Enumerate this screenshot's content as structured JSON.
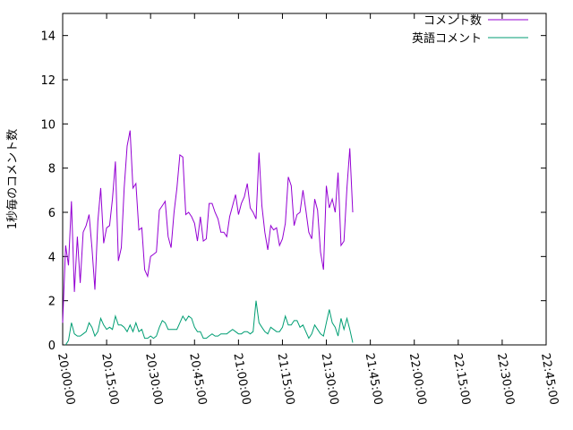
{
  "chart_data": {
    "type": "line",
    "title": "",
    "xlabel": "",
    "ylabel": "1秒毎のコメント数",
    "ylim": [
      0,
      15
    ],
    "xlim": [
      "20:00:00",
      "22:45:00"
    ],
    "x_ticks": [
      "20:00:00",
      "20:15:00",
      "20:30:00",
      "20:45:00",
      "21:00:00",
      "21:15:00",
      "21:30:00",
      "21:45:00",
      "22:00:00",
      "22:15:00",
      "22:30:00",
      "22:45:00"
    ],
    "y_ticks": [
      "0",
      "2",
      "4",
      "6",
      "8",
      "10",
      "12",
      "14"
    ],
    "grid": false,
    "legend_position": "top-right",
    "series": [
      {
        "name": "コメント数",
        "color": "#9400d3",
        "points": [
          [
            "20:00:00",
            1.0
          ],
          [
            "20:01:00",
            4.5
          ],
          [
            "20:02:00",
            3.6
          ],
          [
            "20:03:00",
            6.5
          ],
          [
            "20:04:00",
            2.4
          ],
          [
            "20:05:00",
            4.9
          ],
          [
            "20:06:00",
            2.8
          ],
          [
            "20:07:00",
            5.1
          ],
          [
            "20:08:00",
            5.4
          ],
          [
            "20:09:00",
            5.9
          ],
          [
            "20:10:00",
            4.4
          ],
          [
            "20:11:00",
            2.5
          ],
          [
            "20:12:00",
            5.6
          ],
          [
            "20:13:00",
            7.1
          ],
          [
            "20:14:00",
            4.6
          ],
          [
            "20:15:00",
            5.3
          ],
          [
            "20:16:00",
            5.4
          ],
          [
            "20:17:00",
            6.6
          ],
          [
            "20:18:00",
            8.3
          ],
          [
            "20:19:00",
            3.8
          ],
          [
            "20:20:00",
            4.4
          ],
          [
            "20:21:00",
            7.1
          ],
          [
            "20:22:00",
            9.0
          ],
          [
            "20:23:00",
            9.7
          ],
          [
            "20:24:00",
            7.1
          ],
          [
            "20:25:00",
            7.3
          ],
          [
            "20:26:00",
            5.2
          ],
          [
            "20:27:00",
            5.3
          ],
          [
            "20:28:00",
            3.4
          ],
          [
            "20:29:00",
            3.1
          ],
          [
            "20:30:00",
            4.0
          ],
          [
            "20:31:00",
            4.1
          ],
          [
            "20:32:00",
            4.2
          ],
          [
            "20:33:00",
            6.1
          ],
          [
            "20:34:00",
            6.3
          ],
          [
            "20:35:00",
            6.5
          ],
          [
            "20:36:00",
            4.9
          ],
          [
            "20:37:00",
            4.4
          ],
          [
            "20:38:00",
            6.0
          ],
          [
            "20:39:00",
            7.1
          ],
          [
            "20:40:00",
            8.6
          ],
          [
            "20:41:00",
            8.5
          ],
          [
            "20:42:00",
            5.9
          ],
          [
            "20:43:00",
            6.0
          ],
          [
            "20:44:00",
            5.8
          ],
          [
            "20:45:00",
            5.5
          ],
          [
            "20:46:00",
            4.7
          ],
          [
            "20:47:00",
            5.8
          ],
          [
            "20:48:00",
            4.7
          ],
          [
            "20:49:00",
            4.8
          ],
          [
            "20:50:00",
            6.4
          ],
          [
            "20:51:00",
            6.4
          ],
          [
            "20:52:00",
            6.0
          ],
          [
            "20:53:00",
            5.7
          ],
          [
            "20:54:00",
            5.1
          ],
          [
            "20:55:00",
            5.1
          ],
          [
            "20:56:00",
            4.9
          ],
          [
            "20:57:00",
            5.8
          ],
          [
            "20:58:00",
            6.3
          ],
          [
            "20:59:00",
            6.8
          ],
          [
            "21:00:00",
            5.9
          ],
          [
            "21:01:00",
            6.4
          ],
          [
            "21:02:00",
            6.7
          ],
          [
            "21:03:00",
            7.3
          ],
          [
            "21:04:00",
            6.2
          ],
          [
            "21:05:00",
            6.0
          ],
          [
            "21:06:00",
            5.7
          ],
          [
            "21:07:00",
            8.7
          ],
          [
            "21:08:00",
            6.3
          ],
          [
            "21:09:00",
            5.1
          ],
          [
            "21:10:00",
            4.3
          ],
          [
            "21:11:00",
            5.4
          ],
          [
            "21:12:00",
            5.2
          ],
          [
            "21:13:00",
            5.3
          ],
          [
            "21:14:00",
            4.5
          ],
          [
            "21:15:00",
            4.8
          ],
          [
            "21:16:00",
            5.5
          ],
          [
            "21:17:00",
            7.6
          ],
          [
            "21:18:00",
            7.2
          ],
          [
            "21:19:00",
            5.4
          ],
          [
            "21:20:00",
            5.9
          ],
          [
            "21:21:00",
            6.0
          ],
          [
            "21:22:00",
            7.0
          ],
          [
            "21:23:00",
            6.1
          ],
          [
            "21:24:00",
            5.1
          ],
          [
            "21:25:00",
            4.8
          ],
          [
            "21:26:00",
            6.6
          ],
          [
            "21:27:00",
            6.1
          ],
          [
            "21:28:00",
            4.2
          ],
          [
            "21:29:00",
            3.4
          ],
          [
            "21:30:00",
            7.2
          ],
          [
            "21:31:00",
            6.2
          ],
          [
            "21:32:00",
            6.6
          ],
          [
            "21:33:00",
            6.0
          ],
          [
            "21:34:00",
            7.8
          ],
          [
            "21:35:00",
            4.5
          ],
          [
            "21:36:00",
            4.7
          ],
          [
            "21:37:00",
            7.1
          ],
          [
            "21:38:00",
            8.9
          ],
          [
            "21:39:00",
            6.0
          ]
        ]
      },
      {
        "name": "英語コメント",
        "color": "#009e73",
        "points": [
          [
            "20:01:00",
            0.0
          ],
          [
            "20:02:00",
            0.2
          ],
          [
            "20:03:00",
            1.0
          ],
          [
            "20:04:00",
            0.5
          ],
          [
            "20:05:00",
            0.4
          ],
          [
            "20:06:00",
            0.4
          ],
          [
            "20:07:00",
            0.5
          ],
          [
            "20:08:00",
            0.6
          ],
          [
            "20:09:00",
            1.0
          ],
          [
            "20:10:00",
            0.8
          ],
          [
            "20:11:00",
            0.4
          ],
          [
            "20:12:00",
            0.6
          ],
          [
            "20:13:00",
            1.2
          ],
          [
            "20:14:00",
            0.9
          ],
          [
            "20:15:00",
            0.7
          ],
          [
            "20:16:00",
            0.8
          ],
          [
            "20:17:00",
            0.7
          ],
          [
            "20:18:00",
            1.3
          ],
          [
            "20:19:00",
            0.9
          ],
          [
            "20:20:00",
            0.9
          ],
          [
            "20:21:00",
            0.8
          ],
          [
            "20:22:00",
            0.6
          ],
          [
            "20:23:00",
            0.9
          ],
          [
            "20:24:00",
            0.6
          ],
          [
            "20:25:00",
            1.0
          ],
          [
            "20:26:00",
            0.6
          ],
          [
            "20:27:00",
            0.7
          ],
          [
            "20:28:00",
            0.3
          ],
          [
            "20:29:00",
            0.3
          ],
          [
            "20:30:00",
            0.4
          ],
          [
            "20:31:00",
            0.3
          ],
          [
            "20:32:00",
            0.4
          ],
          [
            "20:33:00",
            0.8
          ],
          [
            "20:34:00",
            1.1
          ],
          [
            "20:35:00",
            1.0
          ],
          [
            "20:36:00",
            0.7
          ],
          [
            "20:37:00",
            0.7
          ],
          [
            "20:38:00",
            0.7
          ],
          [
            "20:39:00",
            0.7
          ],
          [
            "20:40:00",
            1.0
          ],
          [
            "20:41:00",
            1.3
          ],
          [
            "20:42:00",
            1.1
          ],
          [
            "20:43:00",
            1.3
          ],
          [
            "20:44:00",
            1.2
          ],
          [
            "20:45:00",
            0.8
          ],
          [
            "20:46:00",
            0.6
          ],
          [
            "20:47:00",
            0.6
          ],
          [
            "20:48:00",
            0.3
          ],
          [
            "20:49:00",
            0.3
          ],
          [
            "20:50:00",
            0.4
          ],
          [
            "20:51:00",
            0.5
          ],
          [
            "20:52:00",
            0.4
          ],
          [
            "20:53:00",
            0.4
          ],
          [
            "20:54:00",
            0.5
          ],
          [
            "20:55:00",
            0.5
          ],
          [
            "20:56:00",
            0.5
          ],
          [
            "20:57:00",
            0.6
          ],
          [
            "20:58:00",
            0.7
          ],
          [
            "20:59:00",
            0.6
          ],
          [
            "21:00:00",
            0.5
          ],
          [
            "21:01:00",
            0.5
          ],
          [
            "21:02:00",
            0.6
          ],
          [
            "21:03:00",
            0.6
          ],
          [
            "21:04:00",
            0.5
          ],
          [
            "21:05:00",
            0.6
          ],
          [
            "21:06:00",
            2.0
          ],
          [
            "21:07:00",
            1.0
          ],
          [
            "21:08:00",
            0.8
          ],
          [
            "21:09:00",
            0.6
          ],
          [
            "21:10:00",
            0.5
          ],
          [
            "21:11:00",
            0.8
          ],
          [
            "21:12:00",
            0.7
          ],
          [
            "21:13:00",
            0.6
          ],
          [
            "21:14:00",
            0.6
          ],
          [
            "21:15:00",
            0.8
          ],
          [
            "21:16:00",
            1.3
          ],
          [
            "21:17:00",
            0.9
          ],
          [
            "21:18:00",
            0.9
          ],
          [
            "21:19:00",
            1.1
          ],
          [
            "21:20:00",
            1.1
          ],
          [
            "21:21:00",
            0.8
          ],
          [
            "21:22:00",
            0.9
          ],
          [
            "21:23:00",
            0.6
          ],
          [
            "21:24:00",
            0.3
          ],
          [
            "21:25:00",
            0.5
          ],
          [
            "21:26:00",
            0.9
          ],
          [
            "21:27:00",
            0.7
          ],
          [
            "21:28:00",
            0.5
          ],
          [
            "21:29:00",
            0.4
          ],
          [
            "21:30:00",
            1.0
          ],
          [
            "21:31:00",
            1.6
          ],
          [
            "21:32:00",
            1.0
          ],
          [
            "21:33:00",
            0.8
          ],
          [
            "21:34:00",
            0.4
          ],
          [
            "21:35:00",
            1.2
          ],
          [
            "21:36:00",
            0.7
          ],
          [
            "21:37:00",
            1.2
          ],
          [
            "21:38:00",
            0.7
          ],
          [
            "21:39:00",
            0.1
          ]
        ]
      }
    ]
  }
}
